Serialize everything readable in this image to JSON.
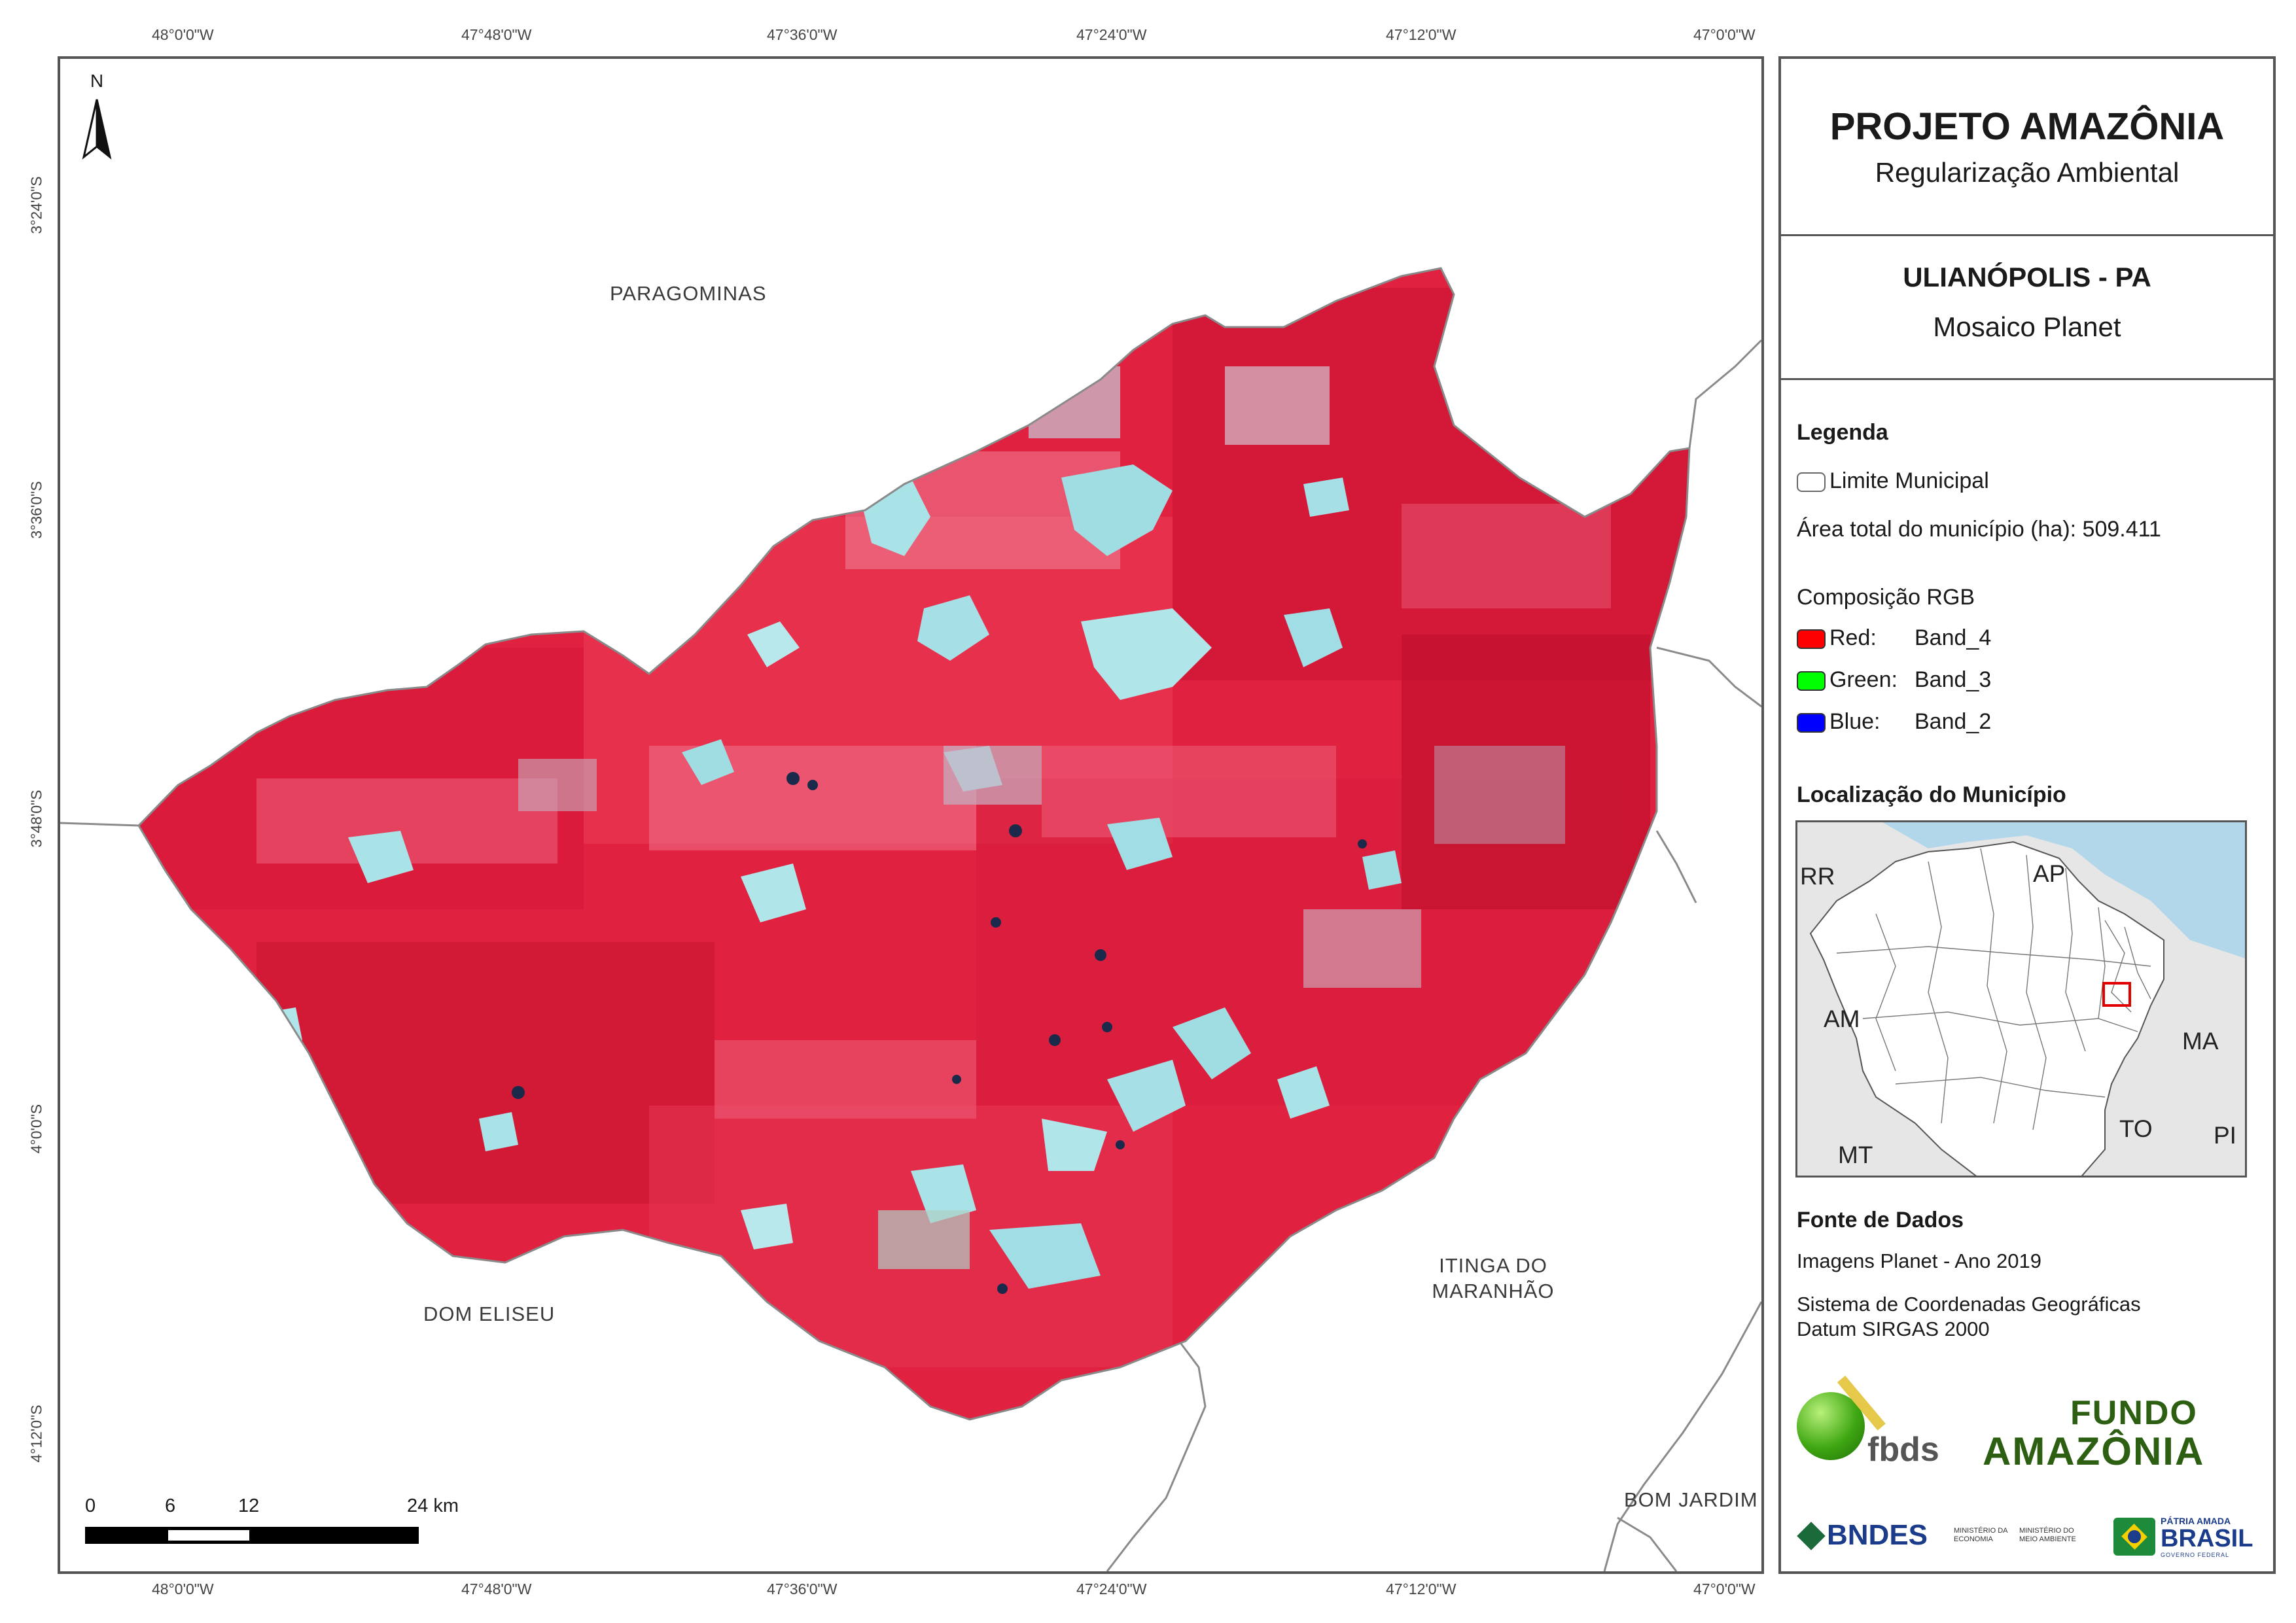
{
  "map": {
    "top_lon_labels": [
      "48°0'0\"W",
      "47°48'0\"W",
      "47°36'0\"W",
      "47°24'0\"W",
      "47°12'0\"W",
      "47°0'0\"W"
    ],
    "bottom_lon_labels": [
      "48°0'0\"W",
      "47°48'0\"W",
      "47°36'0\"W",
      "47°24'0\"W",
      "47°12'0\"W",
      "47°0'0\"W"
    ],
    "left_lat_labels": [
      "3°24'0\"S",
      "3°36'0\"S",
      "3°48'0\"S",
      "4°0'0\"S",
      "4°12'0\"S"
    ],
    "north_arrow_label": "N",
    "neighbor_labels": {
      "paragominas": "PARAGOMINAS",
      "dom_eliseu": "DOM ELISEU",
      "itinga_line1": "ITINGA DO",
      "itinga_line2": "MARANHÃO",
      "bom_jardim": "BOM JARDIM"
    },
    "scale_bar": {
      "labels": [
        "0",
        "6",
        "12",
        "24 km"
      ],
      "values_km": [
        0,
        6,
        12,
        24
      ]
    },
    "colors": {
      "vegetation": "#e0213f",
      "deforested": "#9fdde3",
      "boundary": "#8a8a8a"
    }
  },
  "panel": {
    "title": "PROJETO AMAZÔNIA",
    "subtitle": "Regularização Ambiental",
    "municipality": "ULIANÓPOLIS - PA",
    "mosaic": "Mosaico Planet",
    "legend": {
      "heading": "Legenda",
      "limit_label": "Limite Municipal",
      "area_label": "Área total do município (ha): 509.411",
      "rgb_heading": "Composição RGB",
      "bands": [
        {
          "channel": "Red:",
          "band": "Band_4",
          "color": "#ff0000"
        },
        {
          "channel": "Green:",
          "band": "Band_3",
          "color": "#00ff00"
        },
        {
          "channel": "Blue:",
          "band": "Band_2",
          "color": "#0000ff"
        }
      ]
    },
    "location": {
      "heading": "Localização do Município",
      "labels": {
        "rr": "RR",
        "ap": "AP",
        "am": "AM",
        "ma": "MA",
        "to": "TO",
        "mt": "MT",
        "pi": "PI"
      }
    },
    "sources": {
      "heading": "Fonte de Dados",
      "line1": "Imagens Planet - Ano 2019",
      "line2": "Sistema de Coordenadas Geográficas",
      "line3": "Datum SIRGAS 2000"
    },
    "logos": {
      "fbds": "fbds",
      "fundo_line1": "FUNDO",
      "fundo_line2": "AMAZÔNIA",
      "bndes": "BNDES",
      "min_economia_1": "MINISTÉRIO DA",
      "min_economia_2": "ECONOMIA",
      "min_ambiente_1": "MINISTÉRIO DO",
      "min_ambiente_2": "MEIO AMBIENTE",
      "patria_1": "PÁTRIA AMADA",
      "patria_2": "BRASIL",
      "patria_3": "GOVERNO FEDERAL"
    }
  }
}
